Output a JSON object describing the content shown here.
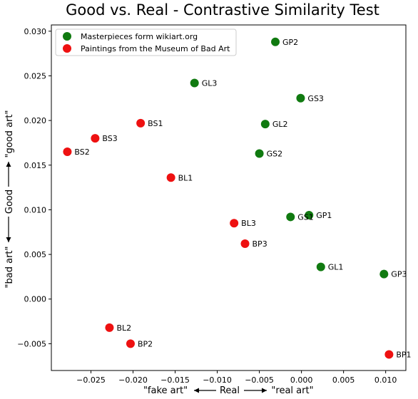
{
  "chart_data": {
    "type": "scatter",
    "title": "Good vs. Real - Contrastive Similarity Test",
    "xlabel": {
      "left": "\"fake art\"",
      "center": "Real",
      "right": "\"real art\""
    },
    "ylabel": {
      "bottom": "\"bad art\"",
      "center": "Good",
      "top": "\"good art\""
    },
    "xlim": [
      -0.0297,
      0.0124
    ],
    "ylim": [
      -0.008,
      0.0307
    ],
    "x_ticks": [
      {
        "value": -0.025,
        "label": "−0.025"
      },
      {
        "value": -0.02,
        "label": "−0.020"
      },
      {
        "value": -0.015,
        "label": "−0.015"
      },
      {
        "value": -0.01,
        "label": "−0.010"
      },
      {
        "value": -0.005,
        "label": "−0.005"
      },
      {
        "value": 0.0,
        "label": "0.000"
      },
      {
        "value": 0.005,
        "label": "0.005"
      },
      {
        "value": 0.01,
        "label": "0.010"
      }
    ],
    "y_ticks": [
      {
        "value": -0.005,
        "label": "−0.005"
      },
      {
        "value": 0.0,
        "label": "0.000"
      },
      {
        "value": 0.005,
        "label": "0.005"
      },
      {
        "value": 0.01,
        "label": "0.010"
      },
      {
        "value": 0.015,
        "label": "0.015"
      },
      {
        "value": 0.02,
        "label": "0.020"
      },
      {
        "value": 0.025,
        "label": "0.025"
      },
      {
        "value": 0.03,
        "label": "0.030"
      }
    ],
    "grid": false,
    "legend_position": "top-left",
    "series": [
      {
        "name": "Masterpieces form wikiart.org",
        "color": "#107a10",
        "points": [
          {
            "label": "GP2",
            "x": -0.0031,
            "y": 0.0288
          },
          {
            "label": "GL3",
            "x": -0.0127,
            "y": 0.0242
          },
          {
            "label": "GS3",
            "x": -0.0001,
            "y": 0.0225
          },
          {
            "label": "GL2",
            "x": -0.0043,
            "y": 0.0196
          },
          {
            "label": "GS2",
            "x": -0.005,
            "y": 0.0163
          },
          {
            "label": "GP1",
            "x": 0.0009,
            "y": 0.0094
          },
          {
            "label": "GS1",
            "x": -0.0013,
            "y": 0.0092
          },
          {
            "label": "GL1",
            "x": 0.0023,
            "y": 0.0036
          },
          {
            "label": "GP3",
            "x": 0.0098,
            "y": 0.0028
          }
        ]
      },
      {
        "name": "Paintings from the Museum of Bad Art",
        "color": "#ee1111",
        "points": [
          {
            "label": "BS1",
            "x": -0.0191,
            "y": 0.0197
          },
          {
            "label": "BS3",
            "x": -0.0245,
            "y": 0.018
          },
          {
            "label": "BS2",
            "x": -0.0278,
            "y": 0.0165
          },
          {
            "label": "BL1",
            "x": -0.0155,
            "y": 0.0136
          },
          {
            "label": "BL3",
            "x": -0.008,
            "y": 0.0085
          },
          {
            "label": "BP3",
            "x": -0.0067,
            "y": 0.0062
          },
          {
            "label": "BL2",
            "x": -0.0228,
            "y": -0.0032
          },
          {
            "label": "BP2",
            "x": -0.0203,
            "y": -0.005
          },
          {
            "label": "BP1",
            "x": 0.0104,
            "y": -0.0062
          }
        ]
      }
    ]
  }
}
